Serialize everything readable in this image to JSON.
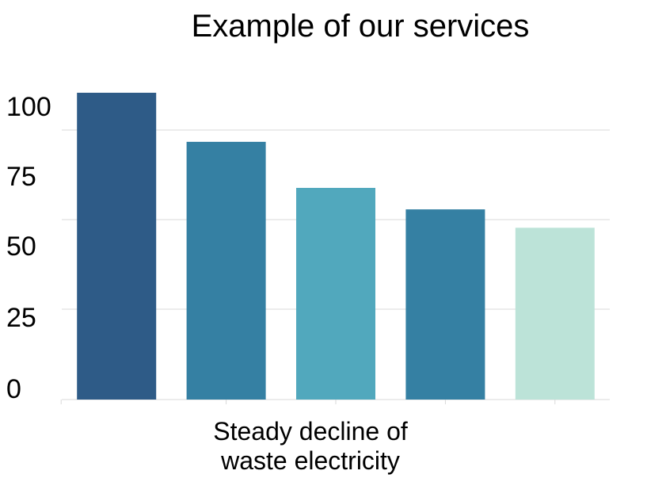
{
  "chart_data": {
    "type": "bar",
    "title": "Example of our services",
    "xlabel": [
      "Steady decline of",
      "waste electricity"
    ],
    "ylabel": "",
    "ylim": [
      0,
      100
    ],
    "yticks": [
      0,
      25,
      50,
      75,
      100
    ],
    "ytick_labels": [
      "0",
      "25",
      "50",
      "75",
      "100"
    ],
    "grid": true,
    "legend": "none",
    "categories": [
      "",
      "",
      "",
      "",
      ""
    ],
    "values": [
      100,
      84,
      69,
      62,
      56
    ],
    "colors": [
      "#2e5b87",
      "#3580a3",
      "#51a8bd",
      "#3580a3",
      "#bce3d8"
    ]
  }
}
